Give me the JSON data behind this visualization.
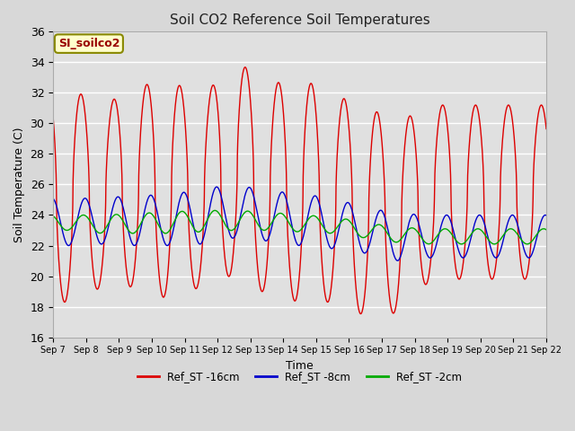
{
  "title": "Soil CO2 Reference Soil Temperatures",
  "xlabel": "Time",
  "ylabel": "Soil Temperature (C)",
  "ylim": [
    16,
    36
  ],
  "yticks": [
    16,
    18,
    20,
    22,
    24,
    26,
    28,
    30,
    32,
    34,
    36
  ],
  "bg_color": "#e0e0e0",
  "grid_color": "#ffffff",
  "legend_label_box": "SI_soilco2",
  "series_colors": [
    "#dd0000",
    "#0000cc",
    "#00aa00"
  ],
  "series_labels": [
    "Ref_ST -16cm",
    "Ref_ST -8cm",
    "Ref_ST -2cm"
  ],
  "x_start_day": 7,
  "x_end_day": 22,
  "xtick_days": [
    7,
    8,
    9,
    10,
    11,
    12,
    13,
    14,
    15,
    16,
    17,
    18,
    19,
    20,
    21,
    22
  ],
  "xtick_labels": [
    "Sep 7",
    "Sep 8",
    "Sep 9",
    "Sep 10",
    "Sep 11",
    "Sep 12",
    "Sep 13",
    "Sep 14",
    "Sep 15",
    "Sep 16",
    "Sep 17",
    "Sep 18",
    "Sep 19",
    "Sep 20",
    "Sep 21",
    "Sep 22"
  ],
  "red_peaks": [
    32.3,
    31.2,
    32.3,
    33.0,
    31.5,
    34.3,
    32.5,
    33.0,
    31.9,
    31.1,
    30.1,
    31.2,
    32.0
  ],
  "red_troughs": [
    18.3,
    19.3,
    19.3,
    18.5,
    19.3,
    20.1,
    18.8,
    18.3,
    18.3,
    17.4,
    17.6,
    19.8
  ],
  "blue_peaks": [
    25.1,
    25.1,
    25.3,
    25.3,
    25.7,
    26.0,
    25.6,
    25.4,
    25.1,
    24.5,
    24.1,
    24.0,
    24.0
  ],
  "blue_troughs": [
    22.0,
    22.1,
    22.0,
    22.0,
    22.1,
    22.5,
    22.3,
    22.0,
    21.8,
    21.5,
    21.0,
    21.2
  ],
  "green_peaks": [
    24.0,
    24.0,
    24.1,
    24.2,
    24.3,
    24.3,
    24.2,
    24.0,
    23.9,
    23.5,
    23.2,
    23.1,
    23.0
  ],
  "green_troughs": [
    23.0,
    22.8,
    22.8,
    22.8,
    22.9,
    23.0,
    23.0,
    22.9,
    22.8,
    22.5,
    22.2,
    22.1
  ]
}
